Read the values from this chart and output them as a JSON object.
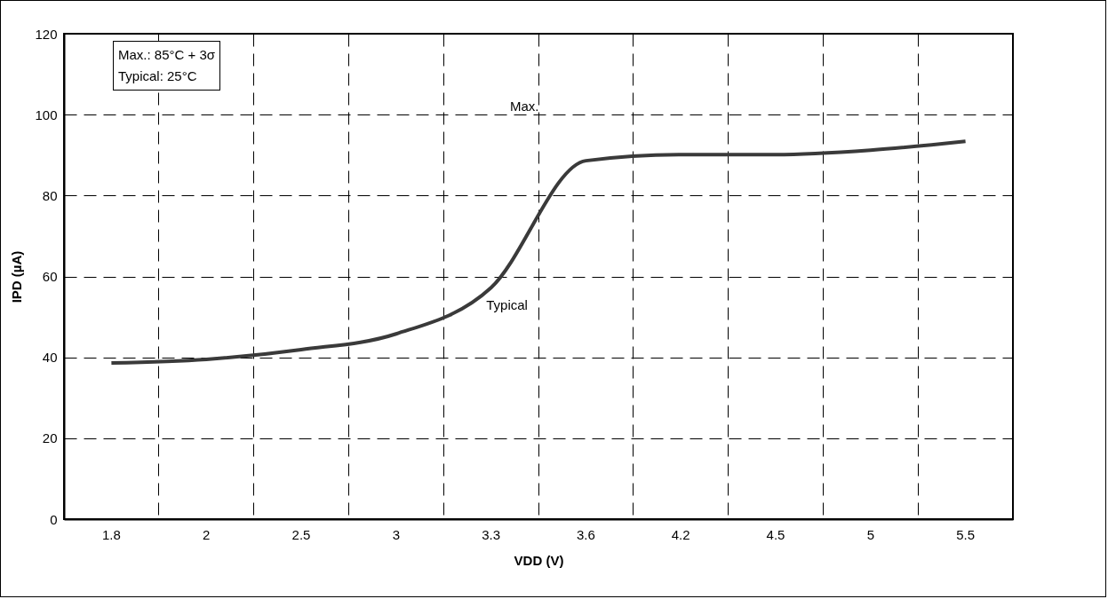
{
  "chart_data": {
    "type": "line",
    "xlabel": "VDD (V)",
    "ylabel": "IPD (µA)",
    "categories": [
      "1.8",
      "2",
      "2.5",
      "3",
      "3.3",
      "3.6",
      "4.2",
      "4.5",
      "5",
      "5.5"
    ],
    "series": [
      {
        "color": "#3a3a3a",
        "values": [
          38.6,
          39.5,
          41.9,
          45.8,
          57.2,
          88.6,
          90.1,
          90.1,
          91.2,
          93.4
        ]
      }
    ],
    "ylim": [
      0,
      120
    ],
    "yticks": [
      0,
      20,
      40,
      60,
      80,
      100,
      120
    ],
    "grid": true,
    "marker": "none",
    "line_style": "solid",
    "annotations": [
      "Max.: 85°C + 3σ",
      "Typical: 25°C",
      "Max.",
      "Typical"
    ]
  }
}
